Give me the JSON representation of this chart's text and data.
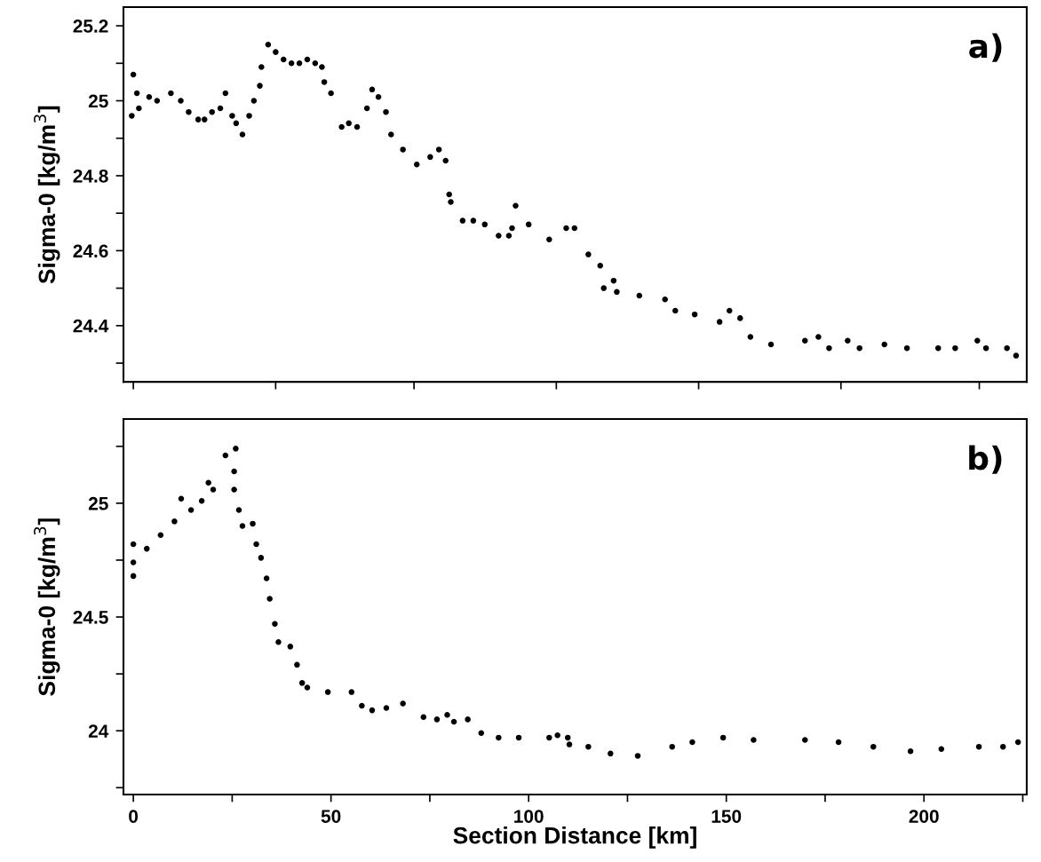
{
  "chart_data": [
    {
      "type": "scatter",
      "ylabel": "Sigma-0 [kg/m$^{3}$]",
      "annotations": [
        "a)"
      ],
      "marker": "circle",
      "tick_labels": "y",
      "xlim": [
        -2.5,
        226
      ],
      "ylim": [
        24.25,
        25.25
      ],
      "xticks": [
        {
          "value": 0,
          "label": null
        },
        {
          "value": 36,
          "label": null
        },
        {
          "value": 71,
          "label": null
        },
        {
          "value": 107,
          "label": null
        },
        {
          "value": 143,
          "label": null
        },
        {
          "value": 179,
          "label": null
        },
        {
          "value": 214,
          "label": null
        }
      ],
      "yticks": [
        {
          "value": 24.3,
          "label": null
        },
        24.4,
        {
          "value": 24.5,
          "label": null
        },
        24.6,
        {
          "value": 24.7,
          "label": null
        },
        24.8,
        {
          "value": 24.9,
          "label": null
        },
        25,
        {
          "value": 25.1,
          "label": null
        },
        25.2
      ],
      "series": [
        {
          "color": "#000000",
          "x": [
            -0.4,
            0,
            0.9,
            1.4,
            4,
            6,
            9.5,
            12,
            14,
            16.4,
            18,
            19.9,
            22,
            23.3,
            25,
            26,
            27.6,
            29.3,
            30.5,
            32,
            32.4,
            34.1,
            36,
            38,
            40,
            42,
            44,
            46,
            47.7,
            48.3,
            50,
            52.7,
            54.5,
            56.6,
            59.1,
            60.4,
            62,
            63.9,
            65.2,
            68.2,
            71.7,
            75.1,
            77.3,
            79,
            79.9,
            80.3,
            83.3,
            86,
            88.9,
            92.4,
            95,
            95.8,
            96.7,
            100,
            105.2,
            109.5,
            111.6,
            115.1,
            118.1,
            119,
            121.5,
            122.3,
            128,
            134.5,
            137.1,
            142,
            148.3,
            150.8,
            153.5,
            156.1,
            161.3,
            169.9,
            173.3,
            176,
            180.7,
            183.7,
            190,
            195.7,
            203.6,
            207.9,
            213.5,
            215.7,
            221,
            223.3
          ],
          "values": [
            24.96,
            25.07,
            25.02,
            24.98,
            25.01,
            25.0,
            25.02,
            25.0,
            24.97,
            24.95,
            24.95,
            24.97,
            24.98,
            25.02,
            24.96,
            24.94,
            24.91,
            24.96,
            25.0,
            25.04,
            25.09,
            25.15,
            25.13,
            25.11,
            25.1,
            25.1,
            25.11,
            25.1,
            25.09,
            25.05,
            25.02,
            24.93,
            24.94,
            24.93,
            24.98,
            25.03,
            25.01,
            24.97,
            24.91,
            24.87,
            24.83,
            24.85,
            24.87,
            24.84,
            24.75,
            24.73,
            24.68,
            24.68,
            24.67,
            24.64,
            24.64,
            24.66,
            24.72,
            24.67,
            24.63,
            24.66,
            24.66,
            24.59,
            24.56,
            24.5,
            24.52,
            24.49,
            24.48,
            24.47,
            24.44,
            24.43,
            24.41,
            24.44,
            24.42,
            24.37,
            24.35,
            24.36,
            24.37,
            24.34,
            24.36,
            24.34,
            24.35,
            24.34,
            24.34,
            24.34,
            24.36,
            24.34,
            24.34,
            24.32
          ]
        }
      ]
    },
    {
      "type": "scatter",
      "xlabel": "Section Distance [km]",
      "ylabel": "Sigma-0 [kg/m$^{3}$]",
      "annotations": [
        "b)"
      ],
      "marker": "circle",
      "xlim": [
        -2.5,
        226
      ],
      "ylim": [
        23.72,
        25.37
      ],
      "xticks": [
        0,
        {
          "value": 25,
          "label": null
        },
        50,
        {
          "value": 75,
          "label": null
        },
        100,
        {
          "value": 125,
          "label": null
        },
        150,
        {
          "value": 175,
          "label": null
        },
        200,
        {
          "value": 225,
          "label": null
        }
      ],
      "yticks": [
        {
          "value": 23.75,
          "label": null
        },
        24,
        {
          "value": 24.25,
          "label": null
        },
        24.5,
        {
          "value": 24.75,
          "label": null
        },
        25,
        {
          "value": 25.25,
          "label": null
        }
      ],
      "series": [
        {
          "color": "#000000",
          "x": [
            0,
            0,
            0,
            3.4,
            6.9,
            10.4,
            12.1,
            14.6,
            17.3,
            19,
            20.2,
            23.3,
            25.9,
            25.5,
            25.5,
            26.7,
            27.6,
            30.2,
            31.1,
            32.3,
            33.7,
            34.5,
            35.8,
            36.7,
            39.7,
            41.4,
            42.7,
            44,
            49.2,
            55.2,
            57.8,
            60.4,
            64,
            68.2,
            73.4,
            76.8,
            79.4,
            81.1,
            84.6,
            88,
            92.4,
            97.5,
            105.2,
            107.3,
            109.9,
            110.3,
            115.1,
            120.7,
            127.6,
            136.3,
            141.4,
            149.2,
            156.9,
            169.9,
            178.4,
            187.2,
            196.6,
            204.4,
            213.9,
            220,
            223.8
          ],
          "values": [
            24.68,
            24.74,
            24.82,
            24.8,
            24.86,
            24.92,
            25.02,
            24.97,
            25.01,
            25.09,
            25.06,
            25.21,
            25.24,
            25.14,
            25.06,
            24.97,
            24.9,
            24.91,
            24.82,
            24.76,
            24.67,
            24.58,
            24.47,
            24.39,
            24.37,
            24.29,
            24.21,
            24.19,
            24.17,
            24.17,
            24.11,
            24.09,
            24.1,
            24.12,
            24.06,
            24.05,
            24.07,
            24.04,
            24.05,
            23.99,
            23.97,
            23.97,
            23.97,
            23.98,
            23.97,
            23.94,
            23.93,
            23.9,
            23.89,
            23.93,
            23.95,
            23.97,
            23.96,
            23.96,
            23.95,
            23.93,
            23.91,
            23.92,
            23.93,
            23.93,
            23.95
          ]
        }
      ]
    }
  ]
}
